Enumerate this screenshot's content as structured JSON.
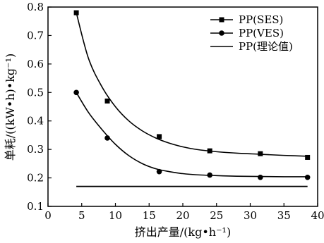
{
  "chart_data": {
    "type": "scatter",
    "title": "",
    "xlabel": "挤出产量/(kg•h⁻¹)",
    "ylabel": "单耗/((kW•h)•kg⁻¹)",
    "xlim": [
      0,
      40
    ],
    "ylim": [
      0.1,
      0.8
    ],
    "x_ticks": [
      "0",
      "5",
      "10",
      "15",
      "20",
      "25",
      "30",
      "35",
      "40"
    ],
    "y_ticks": [
      "0.1",
      "0.2",
      "0.3",
      "0.4",
      "0.5",
      "0.6",
      "0.7",
      "0.8"
    ],
    "grid": false,
    "legend_position": "top-right",
    "series": [
      {
        "name": "PP(SES)",
        "marker": "square",
        "color": "#000000",
        "points": [
          [
            4.2,
            0.78
          ],
          [
            8.8,
            0.47
          ],
          [
            16.5,
            0.345
          ],
          [
            24.0,
            0.295
          ],
          [
            31.5,
            0.285
          ],
          [
            38.5,
            0.272
          ]
        ],
        "fit_curve": [
          [
            4.2,
            0.78
          ],
          [
            6,
            0.62
          ],
          [
            8,
            0.52
          ],
          [
            10,
            0.45
          ],
          [
            12,
            0.4
          ],
          [
            14,
            0.365
          ],
          [
            16,
            0.34
          ],
          [
            18,
            0.322
          ],
          [
            20,
            0.309
          ],
          [
            22,
            0.3
          ],
          [
            25,
            0.292
          ],
          [
            28,
            0.287
          ],
          [
            31.5,
            0.283
          ],
          [
            35,
            0.279
          ],
          [
            38.5,
            0.276
          ]
        ]
      },
      {
        "name": "PP(VES)",
        "marker": "circle",
        "color": "#000000",
        "points": [
          [
            4.2,
            0.5
          ],
          [
            8.8,
            0.34
          ],
          [
            16.5,
            0.222
          ],
          [
            24.0,
            0.21
          ],
          [
            31.5,
            0.202
          ],
          [
            38.5,
            0.202
          ]
        ],
        "fit_curve": [
          [
            4.2,
            0.5
          ],
          [
            6,
            0.43
          ],
          [
            8,
            0.37
          ],
          [
            10,
            0.318
          ],
          [
            12,
            0.278
          ],
          [
            14,
            0.25
          ],
          [
            16,
            0.232
          ],
          [
            18,
            0.222
          ],
          [
            20,
            0.215
          ],
          [
            22,
            0.211
          ],
          [
            25,
            0.208
          ],
          [
            28,
            0.206
          ],
          [
            31.5,
            0.205
          ],
          [
            35,
            0.204
          ],
          [
            38.5,
            0.204
          ]
        ]
      },
      {
        "name": "PP(理论值)",
        "marker": "line",
        "color": "#000000",
        "line": [
          [
            4.2,
            0.17
          ],
          [
            38.5,
            0.17
          ]
        ]
      }
    ]
  }
}
